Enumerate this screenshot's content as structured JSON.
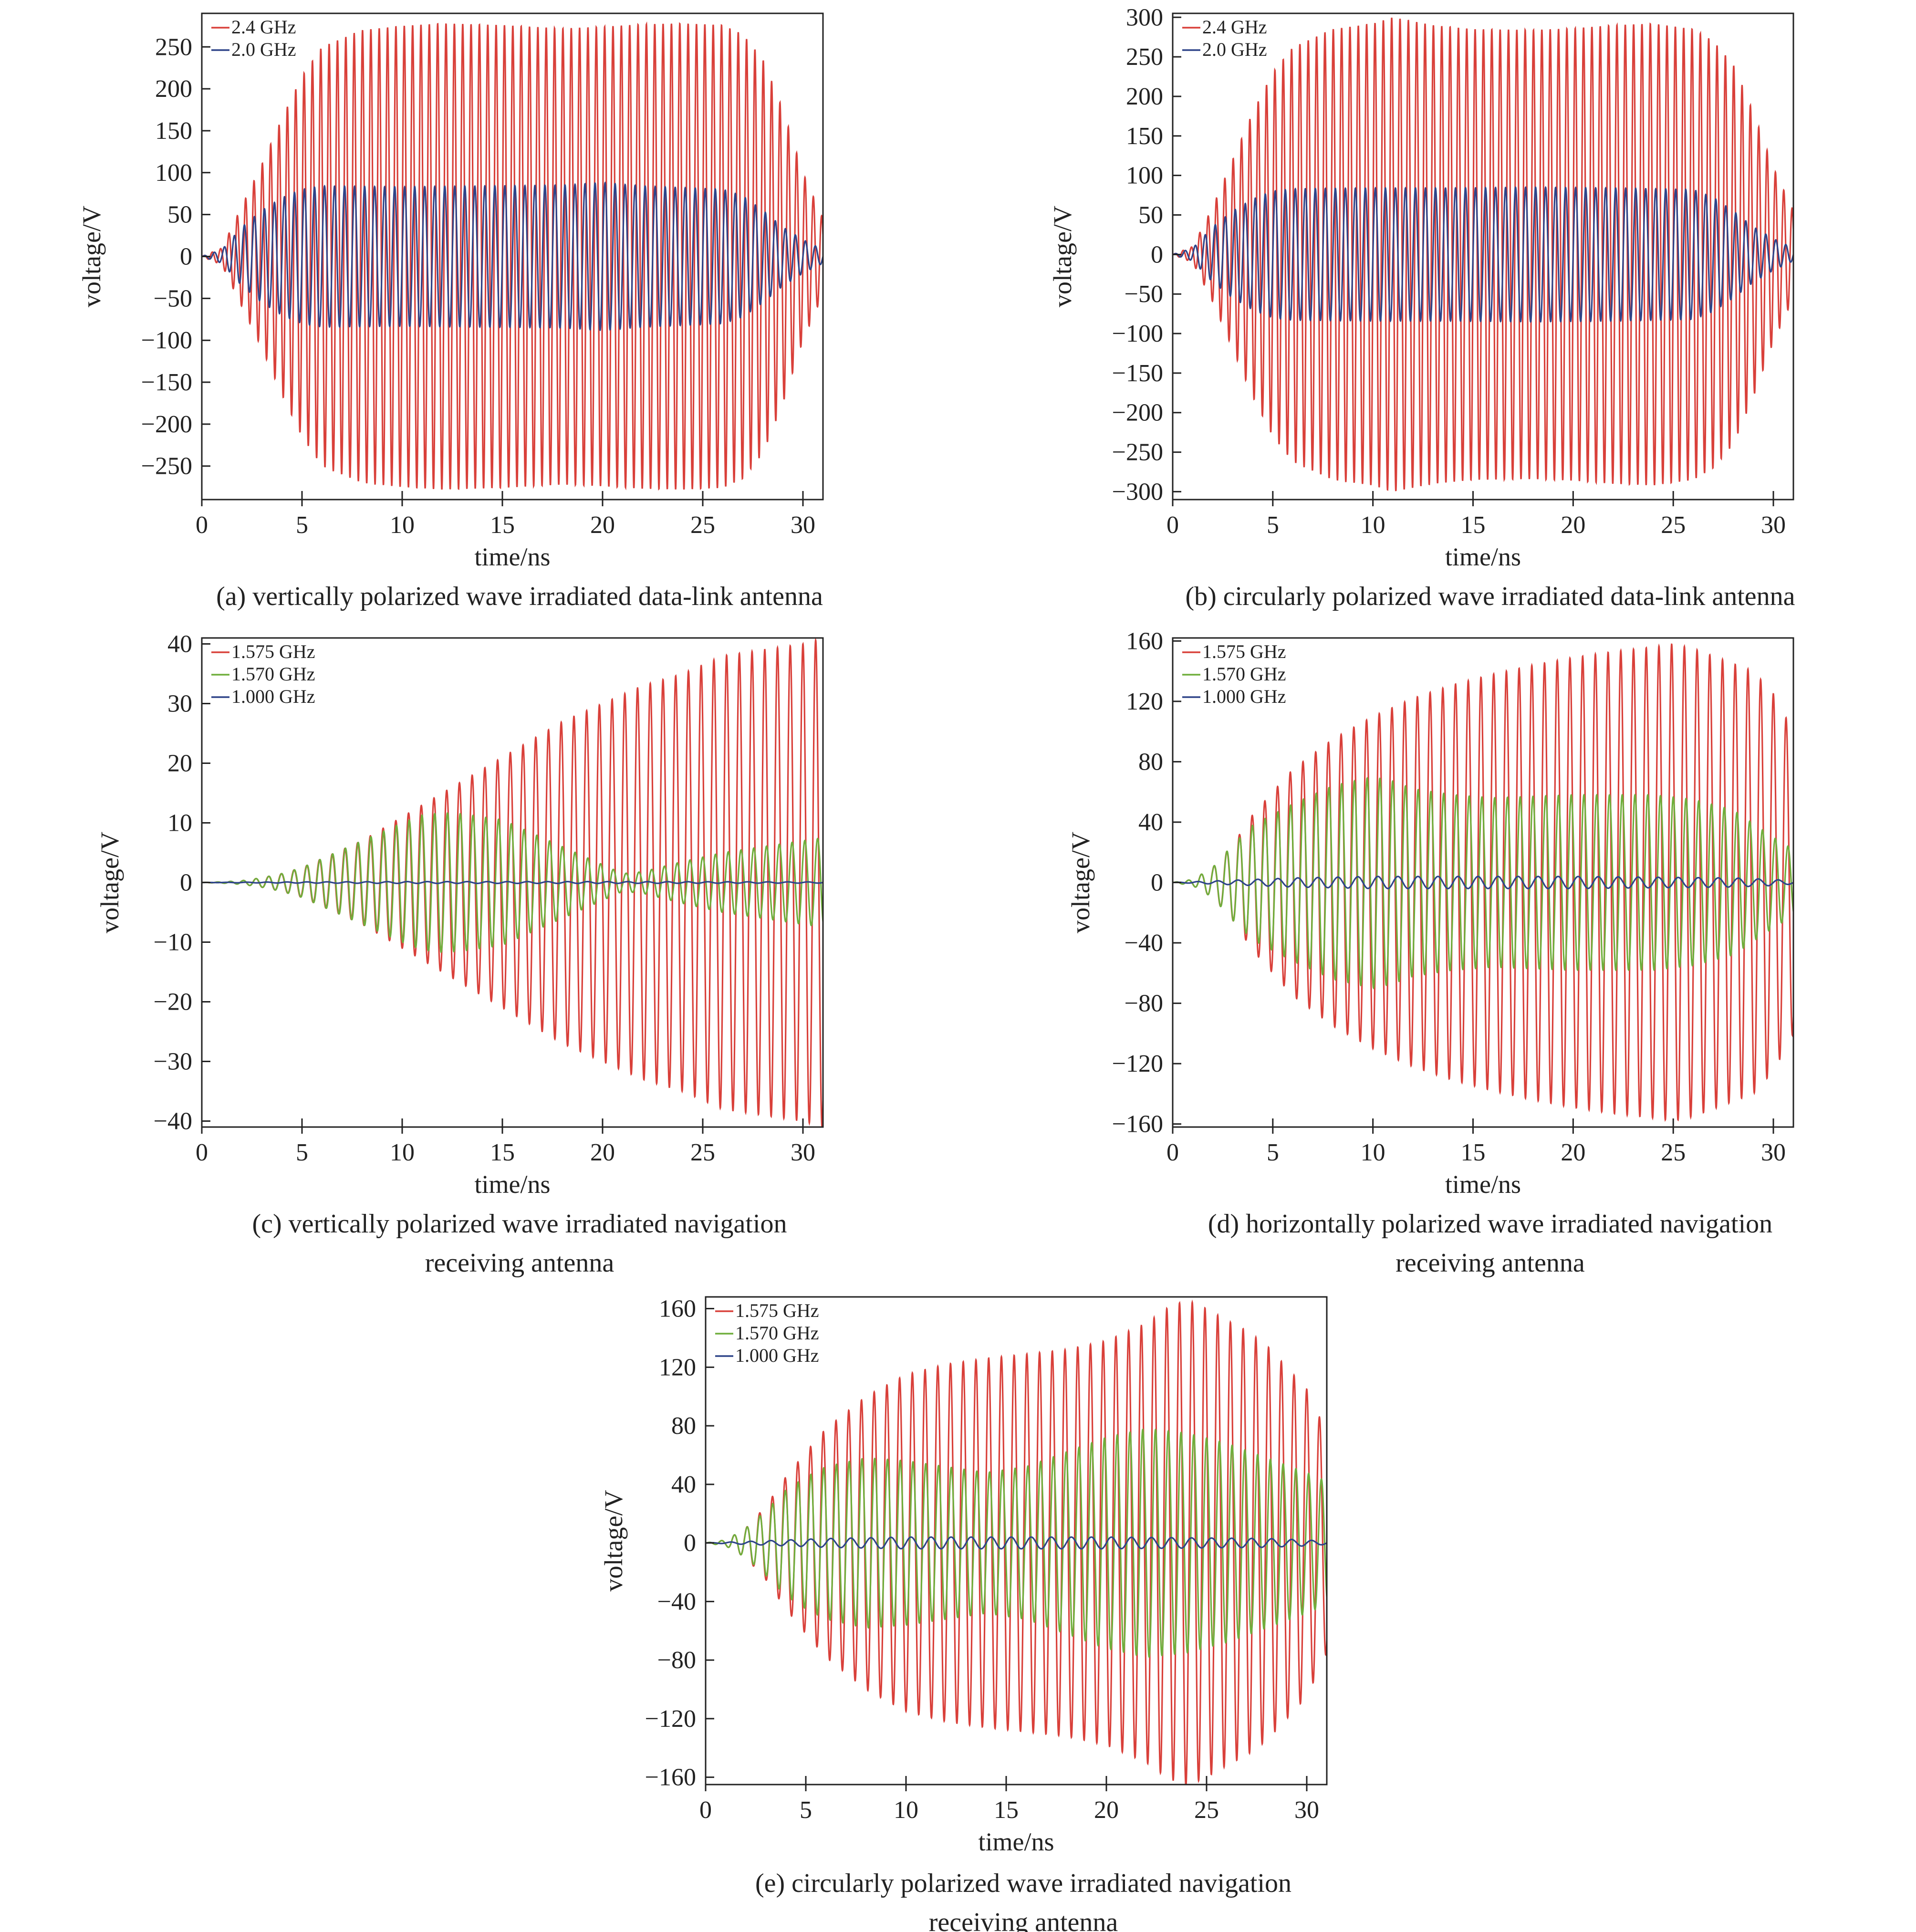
{
  "chart_data": [
    {
      "id": "a",
      "type": "line",
      "caption": "(a) vertically polarized wave irradiated data-link antenna",
      "xlabel": "time/ns",
      "ylabel": "voltage/V",
      "xlim": [
        0,
        31
      ],
      "ylim": [
        -290,
        290
      ],
      "xticks": [
        0,
        5,
        10,
        15,
        20,
        25,
        30
      ],
      "yticks": [
        -250,
        -200,
        -150,
        -100,
        -50,
        0,
        50,
        100,
        150,
        200,
        250
      ],
      "legend_position": "top-left",
      "series": [
        {
          "name": "2.4 GHz",
          "color": "#d9403a",
          "freq_ghz": 2.4,
          "envelope_t": [
            0,
            1,
            2,
            3,
            4,
            5,
            6,
            8,
            10,
            12,
            15,
            18,
            20,
            22,
            24,
            26,
            27,
            28,
            29,
            30,
            31
          ],
          "envelope_v": [
            0,
            10,
            60,
            110,
            165,
            215,
            250,
            270,
            275,
            278,
            276,
            272,
            274,
            277,
            278,
            276,
            265,
            235,
            175,
            100,
            45
          ]
        },
        {
          "name": "2.0 GHz",
          "color": "#2e4489",
          "freq_ghz": 2.0,
          "envelope_t": [
            0,
            1,
            2,
            3,
            4,
            5,
            6,
            10,
            14,
            18,
            20,
            22,
            24,
            26,
            27,
            28,
            29,
            30,
            31
          ],
          "envelope_v": [
            0,
            8,
            35,
            55,
            70,
            80,
            84,
            83,
            84,
            85,
            88,
            84,
            82,
            80,
            72,
            55,
            35,
            20,
            8
          ]
        }
      ]
    },
    {
      "id": "b",
      "type": "line",
      "caption": "(b) circularly polarized wave irradiated data-link antenna",
      "xlabel": "time/ns",
      "ylabel": "voltage/V",
      "xlim": [
        0,
        31
      ],
      "ylim": [
        -310,
        305
      ],
      "xticks": [
        0,
        5,
        10,
        15,
        20,
        25,
        30
      ],
      "yticks": [
        -300,
        -250,
        -200,
        -150,
        -100,
        -50,
        0,
        50,
        100,
        150,
        200,
        250,
        300
      ],
      "legend_position": "top-left",
      "series": [
        {
          "name": "2.4 GHz",
          "color": "#d9403a",
          "freq_ghz": 2.4,
          "envelope_t": [
            0,
            1,
            2,
            3,
            4,
            5,
            6,
            8,
            10,
            11,
            13,
            15,
            18,
            20,
            22,
            24,
            26,
            27,
            28,
            29,
            30,
            31
          ],
          "envelope_v": [
            0,
            10,
            60,
            120,
            180,
            230,
            262,
            285,
            292,
            300,
            290,
            285,
            284,
            286,
            290,
            292,
            285,
            270,
            240,
            180,
            110,
            55
          ]
        },
        {
          "name": "2.0 GHz",
          "color": "#2e4489",
          "freq_ghz": 2.0,
          "envelope_t": [
            0,
            1,
            2,
            3,
            4,
            5,
            6,
            10,
            14,
            18,
            22,
            26,
            27,
            28,
            29,
            30,
            31
          ],
          "envelope_v": [
            0,
            8,
            35,
            55,
            70,
            80,
            83,
            84,
            84,
            85,
            84,
            82,
            72,
            55,
            35,
            20,
            8
          ]
        }
      ]
    },
    {
      "id": "c",
      "type": "line",
      "caption": [
        "(c) vertically polarized wave irradiated navigation",
        "receiving antenna"
      ],
      "xlabel": "time/ns",
      "ylabel": "voltage/V",
      "xlim": [
        0,
        31
      ],
      "ylim": [
        -41,
        41
      ],
      "xticks": [
        0,
        5,
        10,
        15,
        20,
        25,
        30
      ],
      "yticks": [
        -40,
        -30,
        -20,
        -10,
        0,
        10,
        20,
        30,
        40
      ],
      "legend_position": "top-left",
      "series": [
        {
          "name": "1.575 GHz",
          "color": "#d9403a",
          "freq_ghz": 1.575,
          "envelope_t": [
            0,
            1,
            2,
            3,
            4,
            5,
            6,
            8,
            10,
            12,
            14,
            16,
            18,
            20,
            22,
            24,
            26,
            28,
            30,
            31
          ],
          "envelope_v": [
            0,
            0.1,
            0.3,
            0.8,
            1.5,
            2.5,
            4,
            7,
            11,
            15,
            19,
            23,
            27,
            30,
            33,
            35,
            38,
            39,
            40,
            41
          ]
        },
        {
          "name": "1.570 GHz",
          "color": "#6fae3c",
          "freq_ghz": 1.57,
          "envelope_t": [
            0,
            1,
            2,
            3,
            4,
            5,
            6,
            8,
            10,
            11,
            12,
            13,
            14,
            15,
            16,
            18,
            20,
            21,
            22,
            24,
            26,
            28,
            30,
            31
          ],
          "envelope_v": [
            0,
            0.1,
            0.3,
            0.8,
            1.5,
            2.5,
            4,
            7,
            10,
            11.3,
            11.7,
            11.5,
            11,
            10.5,
            9,
            6,
            3,
            1.5,
            1.8,
            3.5,
            5,
            6,
            7,
            7.5
          ]
        },
        {
          "name": "1.000 GHz",
          "color": "#2e4489",
          "freq_ghz": 1.0,
          "envelope_t": [
            0,
            2,
            5,
            10,
            20,
            31
          ],
          "envelope_v": [
            0,
            0.05,
            0.1,
            0.15,
            0.15,
            0.1
          ]
        }
      ]
    },
    {
      "id": "d",
      "type": "line",
      "caption": [
        "(d) horizontally polarized wave irradiated navigation",
        "receiving antenna"
      ],
      "xlabel": "time/ns",
      "ylabel": "voltage/V",
      "xlim": [
        0,
        31
      ],
      "ylim": [
        -162,
        162
      ],
      "xticks": [
        0,
        5,
        10,
        15,
        20,
        25,
        30
      ],
      "yticks": [
        -160,
        -120,
        -80,
        -40,
        0,
        40,
        80,
        120,
        160
      ],
      "legend_position": "top-left",
      "series": [
        {
          "name": "1.575 GHz",
          "color": "#d9403a",
          "freq_ghz": 1.575,
          "envelope_t": [
            0,
            1,
            2,
            3,
            4,
            5,
            6,
            8,
            10,
            12,
            14,
            16,
            18,
            20,
            22,
            24,
            25,
            26,
            27,
            28,
            29,
            30,
            31
          ],
          "envelope_v": [
            0,
            2,
            10,
            25,
            45,
            60,
            75,
            95,
            110,
            122,
            131,
            138,
            144,
            149,
            153,
            156,
            158,
            155,
            150,
            145,
            140,
            125,
            100
          ]
        },
        {
          "name": "1.570 GHz",
          "color": "#6fae3c",
          "freq_ghz": 1.57,
          "envelope_t": [
            0,
            1,
            2,
            3,
            4,
            5,
            6,
            7,
            8,
            9,
            10,
            11,
            12,
            14,
            16,
            20,
            24,
            26,
            28,
            30,
            31
          ],
          "envelope_v": [
            0,
            2,
            10,
            25,
            38,
            45,
            52,
            58,
            64,
            67,
            70,
            67,
            62,
            58,
            56,
            58,
            58,
            55,
            48,
            30,
            22
          ]
        },
        {
          "name": "1.000 GHz",
          "color": "#2e4489",
          "freq_ghz": 1.0,
          "envelope_t": [
            0,
            2,
            4,
            6,
            10,
            20,
            28,
            30,
            31
          ],
          "envelope_v": [
            0,
            1,
            2,
            3,
            4,
            4,
            3,
            2,
            1
          ]
        }
      ]
    },
    {
      "id": "e",
      "type": "line",
      "caption": [
        "(e) circularly polarized wave irradiated navigation",
        "receiving antenna"
      ],
      "xlabel": "time/ns",
      "ylabel": "voltage/V",
      "xlim": [
        0,
        31
      ],
      "ylim": [
        -165,
        168
      ],
      "xticks": [
        0,
        5,
        10,
        15,
        20,
        25,
        30
      ],
      "yticks": [
        -160,
        -120,
        -80,
        -40,
        0,
        40,
        80,
        120,
        160
      ],
      "legend_position": "top-left",
      "series": [
        {
          "name": "1.575 GHz",
          "color": "#d9403a",
          "freq_ghz": 1.575,
          "envelope_t": [
            0,
            1,
            2,
            3,
            4,
            5,
            6,
            8,
            10,
            12,
            14,
            16,
            18,
            20,
            22,
            23,
            24,
            25,
            26,
            27,
            28,
            29,
            30,
            31
          ],
          "envelope_v": [
            0,
            2,
            10,
            25,
            45,
            62,
            78,
            100,
            115,
            122,
            126,
            129,
            132,
            138,
            150,
            160,
            166,
            160,
            152,
            145,
            135,
            120,
            105,
            75
          ]
        },
        {
          "name": "1.570 GHz",
          "color": "#6fae3c",
          "freq_ghz": 1.57,
          "envelope_t": [
            0,
            1,
            2,
            3,
            4,
            5,
            6,
            8,
            10,
            12,
            14,
            16,
            18,
            20,
            22,
            24,
            26,
            28,
            30,
            31
          ],
          "envelope_v": [
            0,
            2,
            10,
            22,
            36,
            45,
            52,
            58,
            56,
            52,
            48,
            52,
            62,
            72,
            78,
            75,
            68,
            58,
            48,
            42
          ]
        },
        {
          "name": "1.000 GHz",
          "color": "#2e4489",
          "freq_ghz": 1.0,
          "envelope_t": [
            0,
            2,
            4,
            6,
            10,
            20,
            28,
            30,
            31
          ],
          "envelope_v": [
            0,
            1,
            2,
            3,
            4,
            4,
            3,
            2,
            1
          ]
        }
      ]
    }
  ]
}
